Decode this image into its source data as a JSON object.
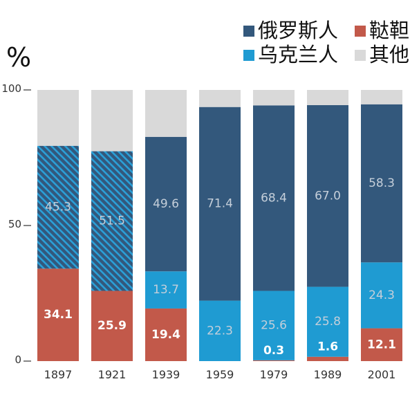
{
  "chart_data": {
    "type": "bar",
    "stacked": true,
    "unit_label": "%",
    "ylim": [
      0,
      100
    ],
    "yticks": [
      "0",
      "50",
      "100"
    ],
    "categories": [
      "1897",
      "1921",
      "1939",
      "1959",
      "1979",
      "1989",
      "2001"
    ],
    "series": [
      {
        "name": "鞑靼人",
        "color": "#c2594a",
        "values": [
          34.1,
          25.9,
          19.4,
          0,
          0.3,
          1.6,
          12.1
        ],
        "labels": [
          "34.1",
          "25.9",
          "19.4",
          "",
          "0.3",
          "1.6",
          "12.1"
        ],
        "label_bold": true
      },
      {
        "name": "乌克兰人",
        "color": "#1f9bd2",
        "values": [
          0,
          0,
          13.7,
          22.3,
          25.6,
          25.8,
          24.3
        ],
        "labels": [
          "",
          "",
          "13.7",
          "22.3",
          "25.6",
          "25.8",
          "24.3"
        ]
      },
      {
        "name": "俄罗斯人",
        "color": "#33587c",
        "values": [
          45.3,
          51.5,
          49.6,
          71.4,
          68.4,
          67.0,
          58.3
        ],
        "labels": [
          "45.3",
          "51.5",
          "49.6",
          "71.4",
          "68.4",
          "67.0",
          "58.3"
        ],
        "hatched": [
          true,
          true,
          false,
          false,
          false,
          false,
          false
        ]
      },
      {
        "name": "其他",
        "color": "#d9d9d9",
        "values": [
          20.6,
          22.6,
          17.3,
          6.3,
          5.7,
          5.6,
          5.3
        ],
        "labels": [
          "",
          "",
          "",
          "",
          "",
          "",
          ""
        ]
      }
    ],
    "legend": {
      "placement": "top-right",
      "order": [
        "俄罗斯人",
        "鞑靼人",
        "乌克兰人",
        "其他"
      ]
    },
    "grid": false,
    "colors": {
      "axis": "#555555",
      "tick_label": "#333333",
      "light_label": "#c5cfda",
      "bold_label": "#ffffff"
    }
  }
}
